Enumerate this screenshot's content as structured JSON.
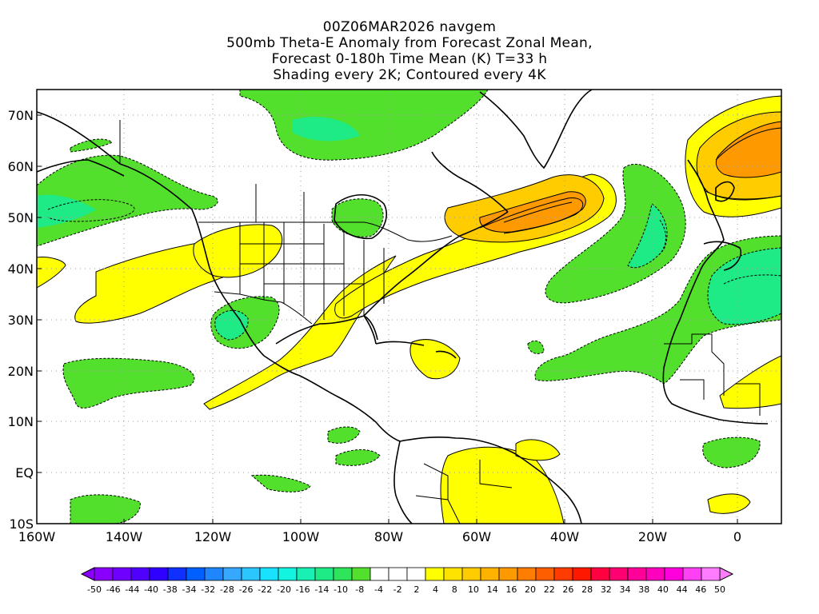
{
  "title": {
    "line1": "00Z06MAR2026 navgem",
    "line2": "500mb Theta-E Anomaly from Forecast Zonal Mean,",
    "line3": "Forecast 0-180h Time Mean (K) T=33 h",
    "line4": "Shading every 2K; Contoured every 4K"
  },
  "axes": {
    "lon_ticks": [
      "160W",
      "140W",
      "120W",
      "100W",
      "80W",
      "60W",
      "40W",
      "20W",
      "0"
    ],
    "lat_ticks": [
      "70N",
      "60N",
      "50N",
      "40N",
      "30N",
      "20N",
      "10N",
      "EQ",
      "10S"
    ]
  },
  "colorbar": {
    "labels": [
      "-50",
      "-46",
      "-44",
      "-40",
      "-38",
      "-34",
      "-32",
      "-28",
      "-26",
      "-22",
      "-20",
      "-16",
      "-14",
      "-10",
      "-8",
      "-4",
      "-2",
      "2",
      "4",
      "8",
      "10",
      "14",
      "16",
      "20",
      "22",
      "26",
      "28",
      "32",
      "34",
      "38",
      "40",
      "44",
      "46",
      "50"
    ],
    "colors": [
      "#8a00ff",
      "#6f00ff",
      "#5000ff",
      "#2f00ff",
      "#1030ff",
      "#0060ff",
      "#1f86ff",
      "#36a8ff",
      "#2cc6ff",
      "#18e2ff",
      "#12f4e0",
      "#18f0b4",
      "#1eea86",
      "#2ee45a",
      "#52e02c",
      "#ffffff",
      "#ffffff",
      "#ffffff",
      "#ffff00",
      "#ffe300",
      "#ffcc00",
      "#ffb300",
      "#ff9900",
      "#ff7d00",
      "#ff5e00",
      "#ff3c00",
      "#ff1800",
      "#ff0040",
      "#ff0070",
      "#ff0099",
      "#ff00bd",
      "#ff00dc",
      "#ff40f5",
      "#ff7cff"
    ]
  },
  "legend_colors": {
    "warm_anomaly": "#ffff00",
    "warmer_anomaly": "#ffcc00",
    "strong_warm_anomaly": "#ff9900",
    "cool_anomaly": "#52e02c",
    "cooler_anomaly": "#1eea86"
  }
}
